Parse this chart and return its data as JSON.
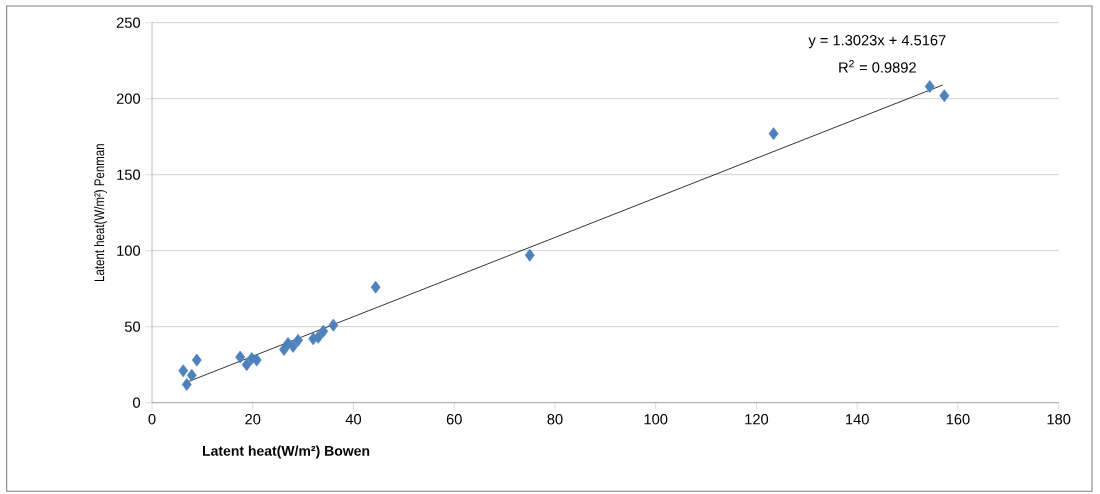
{
  "chart_data": {
    "type": "scatter",
    "xlabel": "**Latent heat(W/m²)  Bowen**",
    "ylabel": "Latent heat(W/m²)  Penman",
    "xlim": [
      0,
      180
    ],
    "xticks": [
      0,
      20,
      40,
      60,
      80,
      100,
      120,
      140,
      160,
      180
    ],
    "ylim": [
      0,
      250
    ],
    "yticks": [
      0,
      50,
      100,
      150,
      200,
      250
    ],
    "grid": "y",
    "marker": "diamond",
    "series": [
      {
        "color": "#4f81bd",
        "x": [
          6.2,
          6.9,
          7.9,
          8.9,
          17.5,
          18.8,
          19.8,
          20.8,
          26.2,
          27,
          28,
          29,
          32,
          33,
          34,
          36,
          44.4,
          75,
          123.4,
          154.4,
          157.3
        ],
        "values": [
          21,
          12,
          18,
          28,
          30,
          25,
          29,
          28,
          35,
          39,
          37,
          41,
          42,
          43,
          47,
          51,
          76,
          97,
          177,
          208,
          202
        ]
      },
      {
        "type": "line",
        "color": "#000000",
        "marker": "none",
        "x": [
          7,
          157
        ],
        "values": [
          13.6,
          209
        ]
      }
    ],
    "annotations": [
      "y = 1.3023x + 4.5167",
      "R$^{2}$ = 0.9892"
    ]
  }
}
